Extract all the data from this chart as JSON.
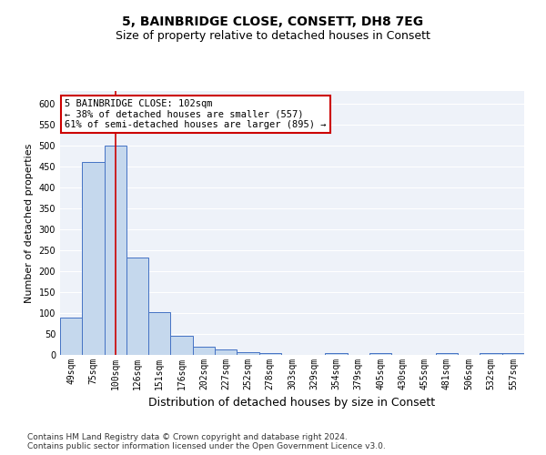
{
  "title_line1": "5, BAINBRIDGE CLOSE, CONSETT, DH8 7EG",
  "title_line2": "Size of property relative to detached houses in Consett",
  "xlabel": "Distribution of detached houses by size in Consett",
  "ylabel": "Number of detached properties",
  "bar_labels": [
    "49sqm",
    "75sqm",
    "100sqm",
    "126sqm",
    "151sqm",
    "176sqm",
    "202sqm",
    "227sqm",
    "252sqm",
    "278sqm",
    "303sqm",
    "329sqm",
    "354sqm",
    "379sqm",
    "405sqm",
    "430sqm",
    "455sqm",
    "481sqm",
    "506sqm",
    "532sqm",
    "557sqm"
  ],
  "bar_values": [
    88,
    460,
    500,
    233,
    103,
    46,
    19,
    12,
    7,
    4,
    0,
    0,
    5,
    0,
    5,
    0,
    0,
    5,
    0,
    5,
    4
  ],
  "bar_color": "#c5d8ed",
  "bar_edge_color": "#4472c4",
  "vline_x": 2,
  "vline_color": "#cc0000",
  "annotation_text": "5 BAINBRIDGE CLOSE: 102sqm\n← 38% of detached houses are smaller (557)\n61% of semi-detached houses are larger (895) →",
  "annotation_box_color": "#ffffff",
  "annotation_box_edge": "#cc0000",
  "ylim": [
    0,
    630
  ],
  "yticks": [
    0,
    50,
    100,
    150,
    200,
    250,
    300,
    350,
    400,
    450,
    500,
    550,
    600
  ],
  "background_color": "#eef2f9",
  "grid_color": "#ffffff",
  "footer": "Contains HM Land Registry data © Crown copyright and database right 2024.\nContains public sector information licensed under the Open Government Licence v3.0.",
  "title_fontsize": 10,
  "subtitle_fontsize": 9,
  "tick_fontsize": 7,
  "ylabel_fontsize": 8,
  "xlabel_fontsize": 9,
  "annotation_fontsize": 7.5,
  "footer_fontsize": 6.5
}
